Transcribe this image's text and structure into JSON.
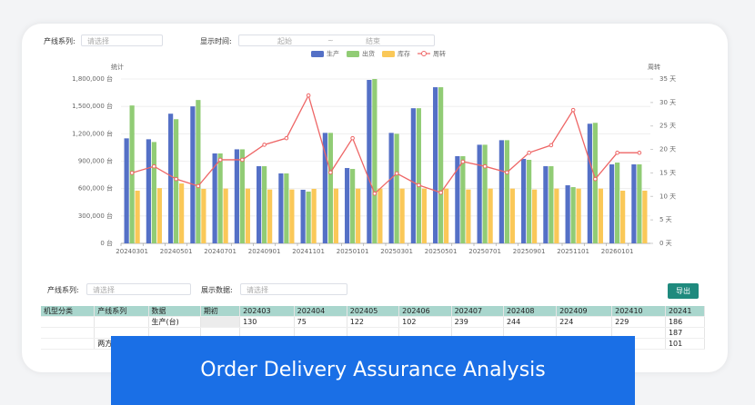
{
  "filters": {
    "series_label": "产线系列:",
    "series_placeholder": "请选择",
    "time_label": "显示时间:",
    "start_placeholder": "起始",
    "separator": "~",
    "end_placeholder": "结束"
  },
  "chart_data": {
    "type": "bar",
    "y_axis_label": "统计",
    "y2_axis_label": "周转",
    "categories": [
      "20240301",
      null,
      "20240501",
      null,
      "20240701",
      null,
      "20240901",
      null,
      "20241101",
      null,
      "20250101",
      null,
      "20250301",
      null,
      "20250501",
      null,
      "20250701",
      null,
      "20250901",
      null,
      "20251101",
      null,
      "20260101",
      null
    ],
    "series": [
      {
        "name": "生产",
        "color": "#5470c6",
        "values": [
          1150000,
          1140000,
          1420000,
          1500000,
          985000,
          1030000,
          845000,
          766000,
          587000,
          1210000,
          825000,
          1790000,
          1210000,
          1480000,
          1710000,
          955000,
          1080000,
          1130000,
          925000,
          845000,
          636000,
          1310000,
          865000,
          865000
        ]
      },
      {
        "name": "出货",
        "color": "#91cc75",
        "values": [
          1510000,
          1110000,
          1360000,
          1570000,
          985000,
          1030000,
          845000,
          766000,
          567000,
          1210000,
          815000,
          1800000,
          1200000,
          1480000,
          1710000,
          955000,
          1080000,
          1130000,
          915000,
          845000,
          616000,
          1320000,
          885000,
          865000
        ]
      },
      {
        "name": "库存",
        "color": "#fac858",
        "values": [
          577000,
          605000,
          656000,
          597000,
          600000,
          600000,
          590000,
          590000,
          597000,
          600000,
          600000,
          600000,
          600000,
          600000,
          600000,
          590000,
          600000,
          600000,
          590000,
          600000,
          600000,
          600000,
          577000,
          577000
        ]
      },
      {
        "name": "周转",
        "color": "#ee6666",
        "type": "line",
        "axis": "y2",
        "values": [
          15,
          16.4,
          13.7,
          12.2,
          17.8,
          17.8,
          21,
          22.4,
          31.5,
          15.1,
          22.4,
          10.6,
          14.9,
          12.4,
          10.8,
          17.4,
          16.4,
          15.1,
          19.3,
          20.9,
          28.4,
          13.7,
          19.3,
          19.3
        ]
      }
    ],
    "ylim": [
      0,
      1800000
    ],
    "yticks": [
      {
        "value": 0,
        "label": "0 台"
      },
      {
        "value": 300000,
        "label": "300,000 台"
      },
      {
        "value": 600000,
        "label": "600,000 台"
      },
      {
        "value": 900000,
        "label": "900,000 台"
      },
      {
        "value": 1200000,
        "label": "1,200,000 台"
      },
      {
        "value": 1500000,
        "label": "1,500,000 台"
      },
      {
        "value": 1800000,
        "label": "1,800,000 台"
      }
    ],
    "y2lim": [
      0,
      35
    ],
    "y2ticks": [
      {
        "value": 0,
        "label": "0 天"
      },
      {
        "value": 5,
        "label": "5 天"
      },
      {
        "value": 10,
        "label": "10 天"
      },
      {
        "value": 15,
        "label": "15 天"
      },
      {
        "value": 20,
        "label": "20 天"
      },
      {
        "value": 25,
        "label": "25 天"
      },
      {
        "value": 30,
        "label": "30 天"
      },
      {
        "value": 35,
        "label": "35 天"
      }
    ],
    "grid": true,
    "legend": "top"
  },
  "table_filters": {
    "series_label": "产线系列:",
    "series_placeholder": "请选择",
    "data_label": "展示数据:",
    "data_placeholder": "请选择",
    "export_button": "导出"
  },
  "table": {
    "columns": [
      "机型分类",
      "产线系列",
      "数据",
      "期初",
      "202403",
      "202404",
      "202405",
      "202406",
      "202407",
      "202408",
      "202409",
      "202410",
      "20241"
    ],
    "rows": [
      [
        null,
        null,
        "生产(台)",
        null,
        130,
        75,
        122,
        102,
        239,
        244,
        224,
        229,
        186
      ],
      [
        null,
        null,
        null,
        null,
        null,
        null,
        null,
        null,
        null,
        null,
        null,
        null,
        187
      ],
      [
        null,
        "两方",
        null,
        null,
        null,
        null,
        null,
        null,
        null,
        null,
        null,
        null,
        101
      ]
    ]
  },
  "banner": "Order Delivery Assurance Analysis"
}
